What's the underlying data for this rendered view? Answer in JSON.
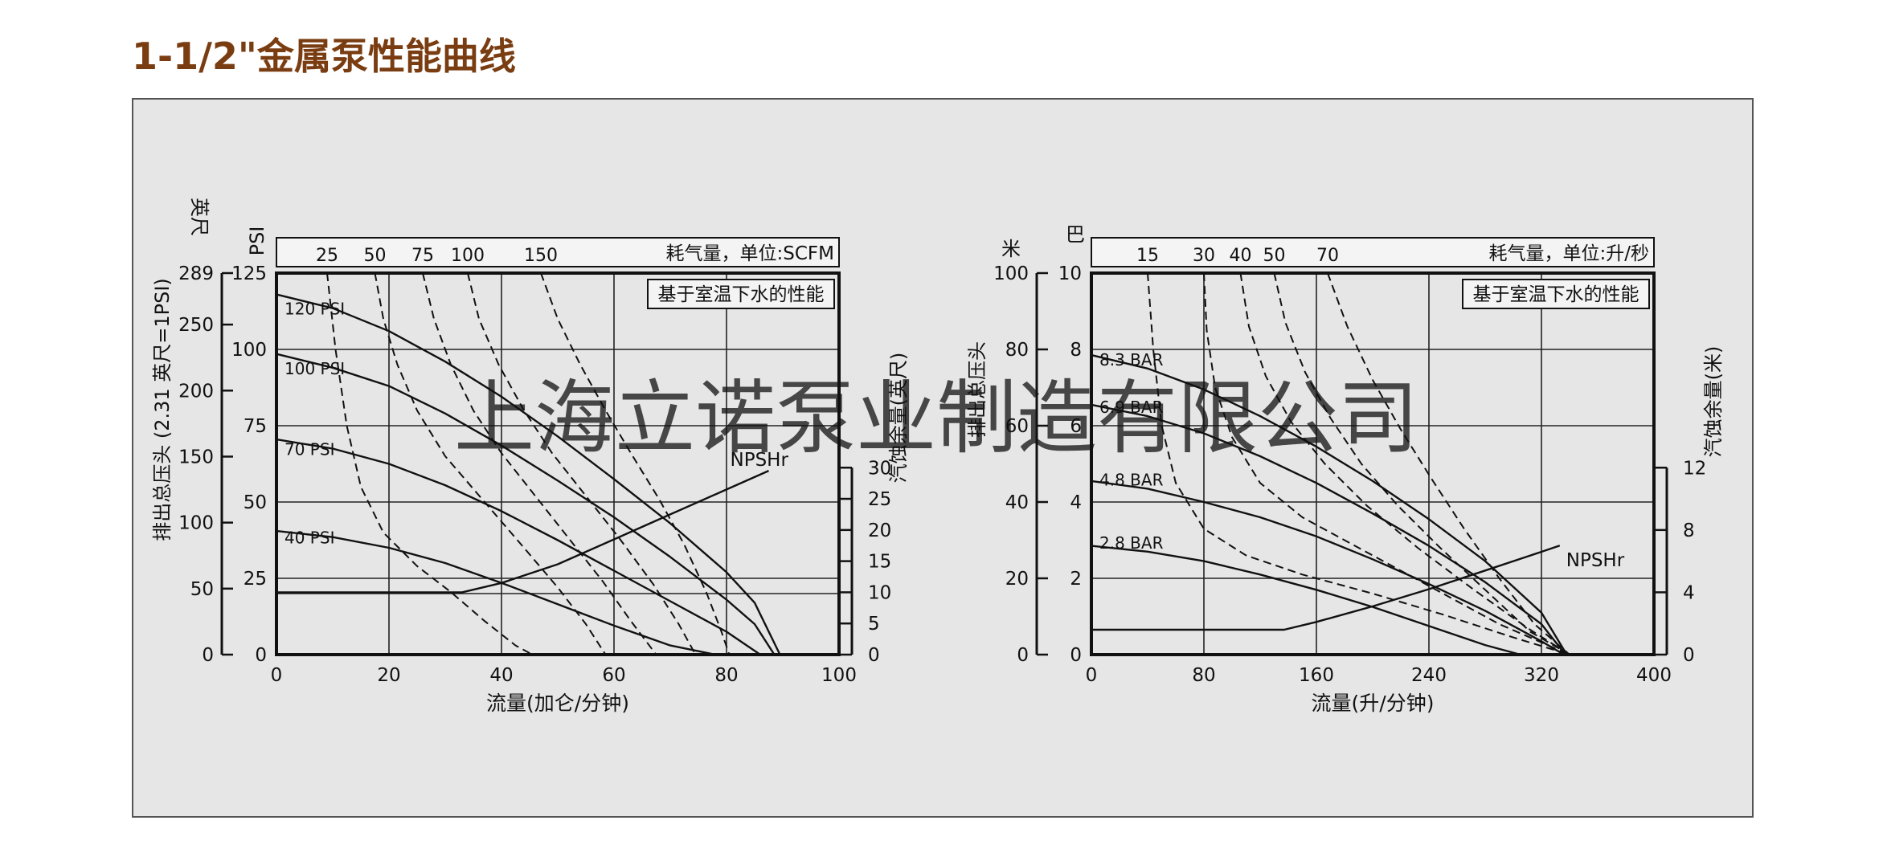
{
  "page": {
    "title": "1-1/2\"金属泵性能曲线"
  },
  "watermark": "上海立诺泵业制造有限公司",
  "colors": {
    "title": "#7a3d12",
    "panel": "#e6e6e6",
    "watermark": "#f2a882",
    "line": "#111111"
  },
  "chart_data": [
    {
      "type": "line",
      "units": "imperial",
      "air_box": "耗气量，单位:SCFM",
      "note_box": "基于室温下水的性能",
      "xlabel": "流量(加仑/分钟)",
      "xlim": [
        0,
        100
      ],
      "x_ticks": [
        "0",
        "20",
        "40",
        "60",
        "80",
        "100"
      ],
      "ylim": [
        0,
        125
      ],
      "y_psi_label": "PSI",
      "y_psi_ticks": [
        "0",
        "25",
        "50",
        "75",
        "100",
        "125"
      ],
      "y_feet_label_top": "英尺",
      "y_feet_label_side": "排出总压头 (2.31 英尺=1PSI)",
      "y_feet_ticks": [
        "0",
        "50",
        "100",
        "150",
        "200",
        "250",
        "289"
      ],
      "npsh_label_side": "汽蚀余量(英尺)",
      "npsh_ticks": [
        "0",
        "5",
        "10",
        "15",
        "20",
        "25",
        "30"
      ],
      "npsh_axis_range": [
        0,
        30
      ],
      "air_ticks": [
        "25",
        "50",
        "75",
        "100",
        "150"
      ],
      "series": [
        {
          "name": "120 PSI",
          "style": "solid",
          "x": [
            0,
            10,
            20,
            30,
            40,
            50,
            60,
            70,
            80,
            85,
            89.5
          ],
          "y": [
            118,
            113.5,
            106,
            96,
            84.5,
            71.5,
            57.5,
            43,
            27,
            17,
            0
          ]
        },
        {
          "name": "100 PSI",
          "style": "solid",
          "x": [
            0,
            10,
            20,
            30,
            40,
            50,
            60,
            70,
            80,
            85,
            88.5
          ],
          "y": [
            98.5,
            94,
            88,
            79,
            68.5,
            57,
            45,
            32,
            18,
            10,
            0
          ]
        },
        {
          "name": "70 PSI",
          "style": "solid",
          "x": [
            0,
            10,
            20,
            30,
            40,
            50,
            60,
            70,
            80,
            86
          ],
          "y": [
            70.5,
            67.5,
            62.5,
            55.5,
            47,
            37.5,
            27.5,
            17.5,
            7.5,
            0
          ]
        },
        {
          "name": "40 PSI",
          "style": "solid",
          "x": [
            0,
            10,
            20,
            30,
            40,
            50,
            60,
            70,
            78
          ],
          "y": [
            40.5,
            38.5,
            35,
            30,
            23.5,
            16.5,
            9.5,
            3,
            0
          ]
        },
        {
          "name": "NPSHr",
          "style": "solid",
          "axis": "npsh",
          "x": [
            0,
            33,
            40,
            50,
            60,
            70,
            80,
            87.5
          ],
          "y": [
            10,
            10,
            11.5,
            14.5,
            18.5,
            22.5,
            26.5,
            29.5
          ]
        },
        {
          "name": "25",
          "style": "dashed",
          "x": [
            9,
            10.5,
            12.5,
            15,
            19,
            25,
            31,
            37,
            42.5,
            45.5
          ],
          "y": [
            125,
            100,
            75,
            55,
            40,
            29,
            20.5,
            11,
            3,
            0
          ]
        },
        {
          "name": "50",
          "style": "dashed",
          "x": [
            17.5,
            19,
            21.5,
            25,
            30,
            37,
            44,
            50,
            55,
            58.5
          ],
          "y": [
            125,
            110,
            95,
            80,
            65,
            50,
            35,
            22,
            10,
            0
          ]
        },
        {
          "name": "75",
          "style": "dashed",
          "x": [
            26,
            28,
            31,
            35,
            40,
            46,
            52,
            58,
            63,
            67.5
          ],
          "y": [
            125,
            110,
            95,
            80,
            66,
            52,
            38,
            24,
            11,
            0
          ]
        },
        {
          "name": "100",
          "style": "dashed",
          "x": [
            34,
            36,
            39.5,
            44,
            49,
            55,
            61,
            67,
            71.5,
            74.5
          ],
          "y": [
            125,
            110,
            95,
            80,
            66,
            52,
            38,
            23,
            10,
            0
          ]
        },
        {
          "name": "150",
          "style": "dashed",
          "x": [
            47,
            50,
            54,
            58.5,
            63,
            68,
            72.5,
            76.5,
            79,
            80.5
          ],
          "y": [
            125,
            110,
            95,
            80,
            66,
            51,
            36,
            20,
            8,
            0
          ]
        }
      ]
    },
    {
      "type": "line",
      "units": "metric",
      "air_box": "耗气量，单位:升/秒",
      "note_box": "基于室温下水的性能",
      "xlabel": "流量(升/分钟)",
      "xlim": [
        0,
        400
      ],
      "x_ticks": [
        "0",
        "80",
        "160",
        "240",
        "320",
        "400"
      ],
      "ylim": [
        0,
        10
      ],
      "y_bar_label": "巴",
      "y_bar_ticks": [
        "0",
        "2",
        "4",
        "6",
        "8",
        "10"
      ],
      "y_m_label_top": "米",
      "y_m_label_side": "排出总压头",
      "y_m_ticks": [
        "0",
        "20",
        "40",
        "60",
        "80",
        "100"
      ],
      "npsh_label_side": "汽蚀余量(米)",
      "npsh_ticks": [
        "0",
        "4",
        "8",
        "12"
      ],
      "npsh_axis_range": [
        0,
        12
      ],
      "air_ticks": [
        "15",
        "30",
        "40",
        "50",
        "70"
      ],
      "series": [
        {
          "name": "8.3 BAR",
          "style": "solid",
          "x": [
            0,
            40,
            80,
            120,
            160,
            200,
            240,
            280,
            320,
            338
          ],
          "y": [
            7.85,
            7.5,
            6.95,
            6.25,
            5.45,
            4.55,
            3.55,
            2.45,
            1.1,
            0
          ]
        },
        {
          "name": "6.9 BAR",
          "style": "solid",
          "x": [
            0,
            40,
            80,
            120,
            160,
            200,
            240,
            280,
            320,
            337
          ],
          "y": [
            6.55,
            6.25,
            5.8,
            5.2,
            4.5,
            3.7,
            2.85,
            1.9,
            0.8,
            0
          ]
        },
        {
          "name": "4.8 BAR",
          "style": "solid",
          "x": [
            0,
            40,
            80,
            120,
            160,
            200,
            240,
            280,
            320,
            336
          ],
          "y": [
            4.55,
            4.35,
            4.0,
            3.6,
            3.1,
            2.5,
            1.85,
            1.15,
            0.35,
            0
          ]
        },
        {
          "name": "2.8 BAR",
          "style": "solid",
          "x": [
            0,
            40,
            80,
            120,
            160,
            200,
            240,
            280,
            305
          ],
          "y": [
            2.85,
            2.7,
            2.45,
            2.1,
            1.7,
            1.25,
            0.75,
            0.25,
            0
          ]
        },
        {
          "name": "NPSHr",
          "style": "solid",
          "axis": "npsh",
          "x": [
            0,
            137,
            160,
            200,
            240,
            280,
            320,
            333
          ],
          "y": [
            1.6,
            1.6,
            2.1,
            3.1,
            4.2,
            5.4,
            6.6,
            7.0
          ]
        },
        {
          "name": "15",
          "style": "dashed",
          "x": [
            40,
            44,
            50,
            60,
            80,
            110,
            150,
            200,
            250,
            300,
            340
          ],
          "y": [
            10,
            8,
            6,
            4.5,
            3.3,
            2.6,
            2.1,
            1.6,
            1.05,
            0.45,
            0
          ]
        },
        {
          "name": "30",
          "style": "dashed",
          "x": [
            80,
            82,
            88,
            100,
            120,
            150,
            190,
            240,
            290,
            340
          ],
          "y": [
            10,
            8.5,
            7,
            5.7,
            4.5,
            3.6,
            2.8,
            1.8,
            0.8,
            0
          ]
        },
        {
          "name": "40",
          "style": "dashed",
          "x": [
            106,
            112,
            124,
            142,
            166,
            196,
            232,
            272,
            310,
            340
          ],
          "y": [
            10,
            8.6,
            7.3,
            6.1,
            5.0,
            3.9,
            2.8,
            1.7,
            0.7,
            0
          ]
        },
        {
          "name": "50",
          "style": "dashed",
          "x": [
            130,
            138,
            152,
            170,
            192,
            218,
            248,
            280,
            312,
            340
          ],
          "y": [
            10,
            8.7,
            7.4,
            6.2,
            5.0,
            3.9,
            2.8,
            1.7,
            0.6,
            0
          ]
        },
        {
          "name": "70",
          "style": "dashed",
          "x": [
            168,
            182,
            200,
            220,
            242,
            265,
            290,
            315,
            340
          ],
          "y": [
            10,
            8.6,
            7.2,
            5.9,
            4.6,
            3.3,
            2.0,
            0.8,
            0
          ]
        }
      ]
    }
  ]
}
